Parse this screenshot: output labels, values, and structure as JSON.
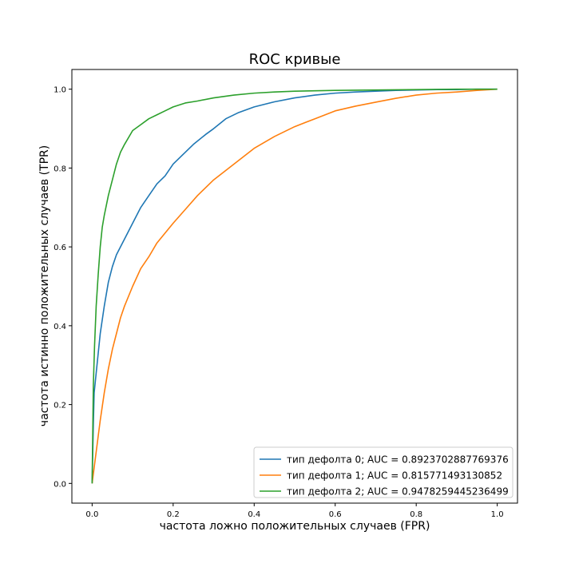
{
  "chart_data": {
    "type": "line",
    "title": "ROC кривые",
    "xlabel": "частота ложно положительных случаев (FPR)",
    "ylabel": "частота истинно положительных случаев (TPR)",
    "xlim": [
      -0.05,
      1.05
    ],
    "ylim": [
      -0.05,
      1.05
    ],
    "xticks": [
      "0.0",
      "0.2",
      "0.4",
      "0.6",
      "0.8",
      "1.0"
    ],
    "yticks": [
      "0.0",
      "0.2",
      "0.4",
      "0.6",
      "0.8",
      "1.0"
    ],
    "grid": false,
    "legend_position": "lower-right",
    "series": [
      {
        "name": "тип дефолта 0; AUC = 0.8923702887769376",
        "color": "#1f77b4",
        "x": [
          0,
          0.003,
          0.005,
          0.01,
          0.015,
          0.02,
          0.03,
          0.04,
          0.05,
          0.06,
          0.07,
          0.08,
          0.1,
          0.12,
          0.14,
          0.16,
          0.18,
          0.2,
          0.22,
          0.25,
          0.28,
          0.3,
          0.33,
          0.36,
          0.4,
          0.45,
          0.5,
          0.55,
          0.6,
          0.65,
          0.7,
          0.75,
          0.8,
          0.85,
          0.9,
          0.95,
          1.0
        ],
        "y": [
          0,
          0.15,
          0.23,
          0.28,
          0.33,
          0.38,
          0.45,
          0.51,
          0.55,
          0.58,
          0.6,
          0.62,
          0.66,
          0.7,
          0.73,
          0.76,
          0.78,
          0.81,
          0.83,
          0.86,
          0.885,
          0.9,
          0.925,
          0.94,
          0.955,
          0.968,
          0.978,
          0.985,
          0.99,
          0.993,
          0.995,
          0.997,
          0.998,
          0.999,
          0.999,
          1.0,
          1.0
        ]
      },
      {
        "name": "тип дефолта 1; AUC = 0.815771493130852",
        "color": "#ff7f0e",
        "x": [
          0,
          0.005,
          0.01,
          0.015,
          0.02,
          0.03,
          0.04,
          0.05,
          0.06,
          0.07,
          0.08,
          0.1,
          0.12,
          0.14,
          0.16,
          0.18,
          0.2,
          0.23,
          0.26,
          0.3,
          0.35,
          0.4,
          0.45,
          0.5,
          0.55,
          0.6,
          0.65,
          0.7,
          0.75,
          0.8,
          0.85,
          0.9,
          0.95,
          1.0
        ],
        "y": [
          0,
          0.04,
          0.08,
          0.12,
          0.16,
          0.23,
          0.29,
          0.34,
          0.38,
          0.42,
          0.45,
          0.5,
          0.545,
          0.575,
          0.61,
          0.635,
          0.66,
          0.695,
          0.73,
          0.77,
          0.81,
          0.85,
          0.88,
          0.905,
          0.925,
          0.945,
          0.957,
          0.967,
          0.977,
          0.985,
          0.99,
          0.993,
          0.997,
          1.0
        ]
      },
      {
        "name": "тип дефолта 2; AUC = 0.9478259445236499",
        "color": "#2ca02c",
        "x": [
          0,
          0.003,
          0.006,
          0.01,
          0.015,
          0.02,
          0.025,
          0.03,
          0.04,
          0.05,
          0.06,
          0.07,
          0.08,
          0.1,
          0.12,
          0.14,
          0.16,
          0.18,
          0.2,
          0.23,
          0.26,
          0.3,
          0.35,
          0.4,
          0.45,
          0.5,
          0.6,
          0.7,
          0.8,
          0.9,
          1.0
        ],
        "y": [
          0,
          0.25,
          0.35,
          0.45,
          0.53,
          0.6,
          0.65,
          0.68,
          0.73,
          0.77,
          0.81,
          0.84,
          0.86,
          0.895,
          0.91,
          0.925,
          0.935,
          0.945,
          0.955,
          0.965,
          0.97,
          0.978,
          0.985,
          0.99,
          0.993,
          0.995,
          0.997,
          0.998,
          0.999,
          1.0,
          1.0
        ]
      }
    ]
  }
}
